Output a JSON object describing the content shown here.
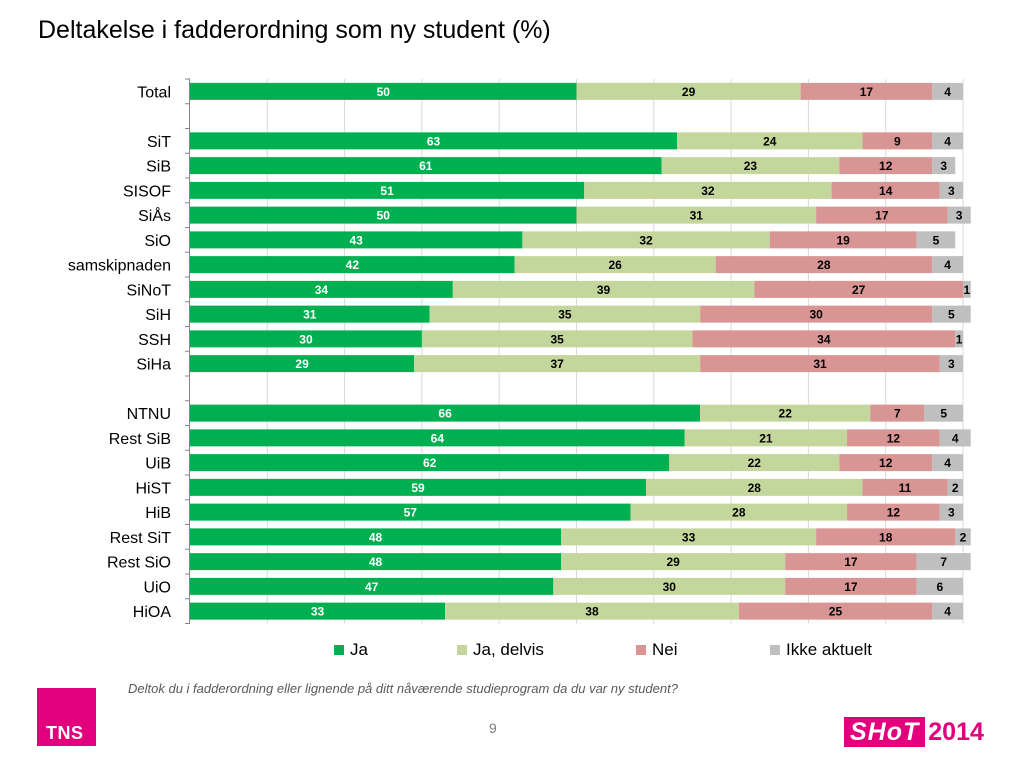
{
  "title": "Deltakelse i fadderordning som ny student (%)",
  "question": "Deltok du i fadderordning eller lignende på ditt nåværende studieprogram da du var ny student?",
  "page_number": "9",
  "logos": {
    "tns": "TNS",
    "shot": "SHoT",
    "shot_year": "2014"
  },
  "colors": {
    "ja": "#00b050",
    "ja_delvis": "#c3d69b",
    "nei": "#d99594",
    "ikke_aktuelt": "#bfbfbf"
  },
  "chart_data": {
    "type": "bar",
    "orientation": "horizontal",
    "stacked": true,
    "percent_stacked": true,
    "title": "Deltakelse i fadderordning som ny student (%)",
    "legend_position": "bottom",
    "grid": true,
    "categories": [
      "Total",
      "",
      "SiT",
      "SiB",
      "SISOF",
      "SiÅs",
      "SiO",
      "samskipnaden",
      "SiNoT",
      "SiH",
      "SSH",
      "SiHa",
      "",
      "NTNU",
      "Rest SiB",
      "UiB",
      "HiST",
      "HiB",
      "Rest SiT",
      "Rest SiO",
      "UiO",
      "HiOA"
    ],
    "series": [
      {
        "name": "Ja",
        "color": "#00b050",
        "label_color": "#ffffff",
        "values": [
          50,
          null,
          63,
          61,
          51,
          50,
          43,
          42,
          34,
          31,
          30,
          29,
          null,
          66,
          64,
          62,
          59,
          57,
          48,
          48,
          47,
          33
        ]
      },
      {
        "name": "Ja, delvis",
        "color": "#c3d69b",
        "label_color": "#000000",
        "values": [
          29,
          null,
          24,
          23,
          32,
          31,
          32,
          26,
          39,
          35,
          35,
          37,
          null,
          22,
          21,
          22,
          28,
          28,
          33,
          29,
          30,
          38
        ]
      },
      {
        "name": "Nei",
        "color": "#d99594",
        "label_color": "#000000",
        "values": [
          17,
          null,
          9,
          12,
          14,
          17,
          19,
          28,
          27,
          30,
          34,
          31,
          null,
          7,
          12,
          12,
          11,
          12,
          18,
          17,
          17,
          25
        ]
      },
      {
        "name": "Ikke aktuelt",
        "color": "#bfbfbf",
        "label_color": "#000000",
        "values": [
          4,
          null,
          4,
          3,
          3,
          3,
          5,
          4,
          1,
          5,
          1,
          3,
          null,
          5,
          4,
          4,
          2,
          3,
          2,
          7,
          6,
          4
        ]
      }
    ]
  }
}
